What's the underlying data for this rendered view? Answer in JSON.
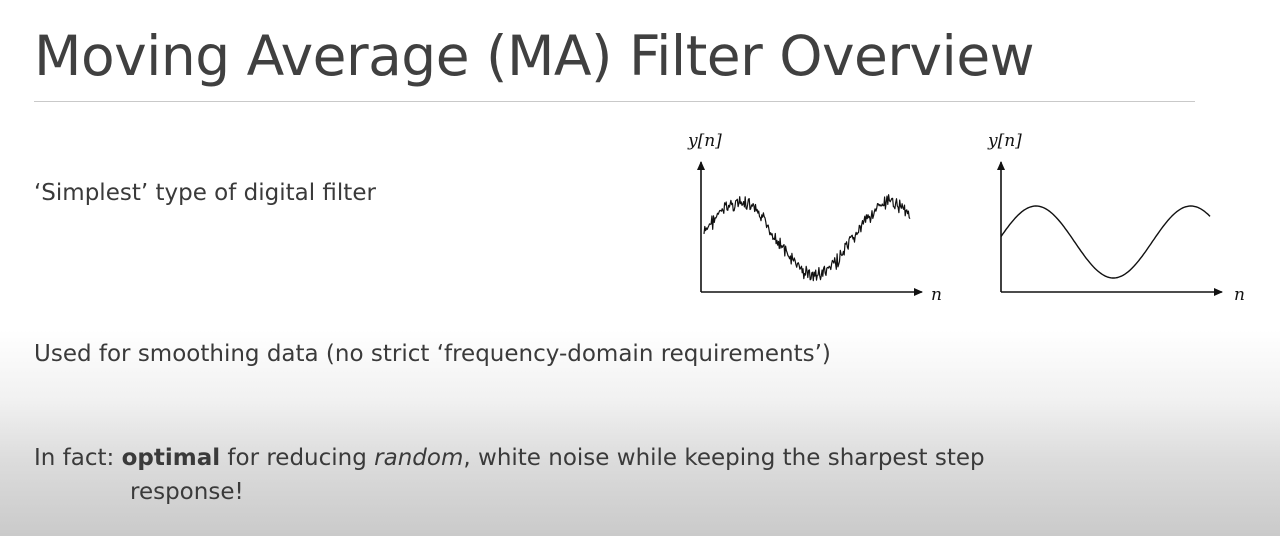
{
  "slide": {
    "title": "Moving Average (MA) Filter Overview"
  },
  "bullets": {
    "first": "‘Simplest’ type of digital filter",
    "second": "Used for smoothing data (no strict ‘frequency-domain requirements’)",
    "third": {
      "prefix": "In fact: ",
      "bold": "optimal",
      "middle": " for reducing ",
      "italic": "random",
      "rest": ", white noise while keeping the sharpest step",
      "continuation": "response!"
    }
  },
  "figures": {
    "noisy_plot": {
      "y_label": "y[n]",
      "x_label": "n",
      "signal": "noisy-sinusoid"
    },
    "smooth_plot": {
      "y_label": "y[n]",
      "x_label": "n",
      "signal": "smooth-sinusoid"
    }
  },
  "colors": {
    "title_text": "#404040",
    "body_text": "#3a3a3a",
    "plot_ink": "#111111"
  }
}
